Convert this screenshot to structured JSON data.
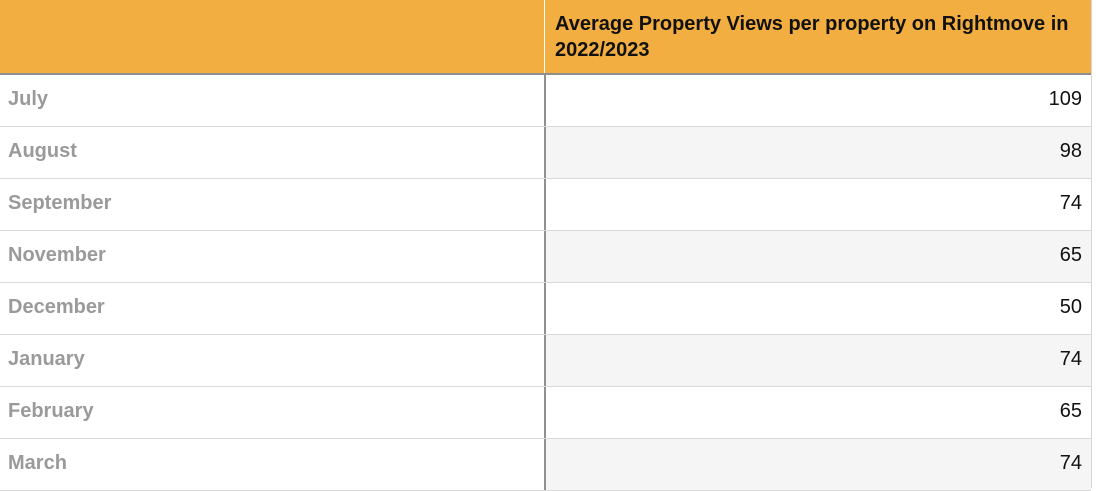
{
  "chart_data": {
    "type": "table",
    "columns": [
      "",
      "Average Property Views per property on Rightmove in 2022/2023"
    ],
    "categories": [
      "July",
      "August",
      "September",
      "November",
      "December",
      "January",
      "February",
      "March"
    ],
    "values": [
      109,
      98,
      74,
      65,
      50,
      74,
      65,
      74
    ],
    "header_color": "#f2ae40"
  }
}
